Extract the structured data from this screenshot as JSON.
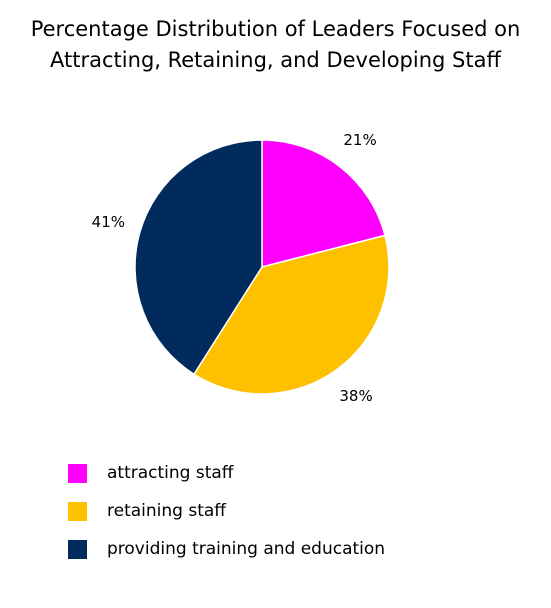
{
  "chart_data": {
    "type": "pie",
    "title_lines": [
      "Percentage Distribution of Leaders Focused on",
      "Attracting, Retaining, and Developing Staff"
    ],
    "slices": [
      {
        "name": "attracting staff",
        "value": 21,
        "label": "21%",
        "color": "#ff00ff"
      },
      {
        "name": "retaining staff",
        "value": 38,
        "label": "38%",
        "color": "#ffc000"
      },
      {
        "name": "providing training and education",
        "value": 41,
        "label": "41%",
        "color": "#002b5c"
      }
    ],
    "start": "12 o'clock",
    "direction": "clockwise",
    "legend_position": "bottom-left"
  }
}
